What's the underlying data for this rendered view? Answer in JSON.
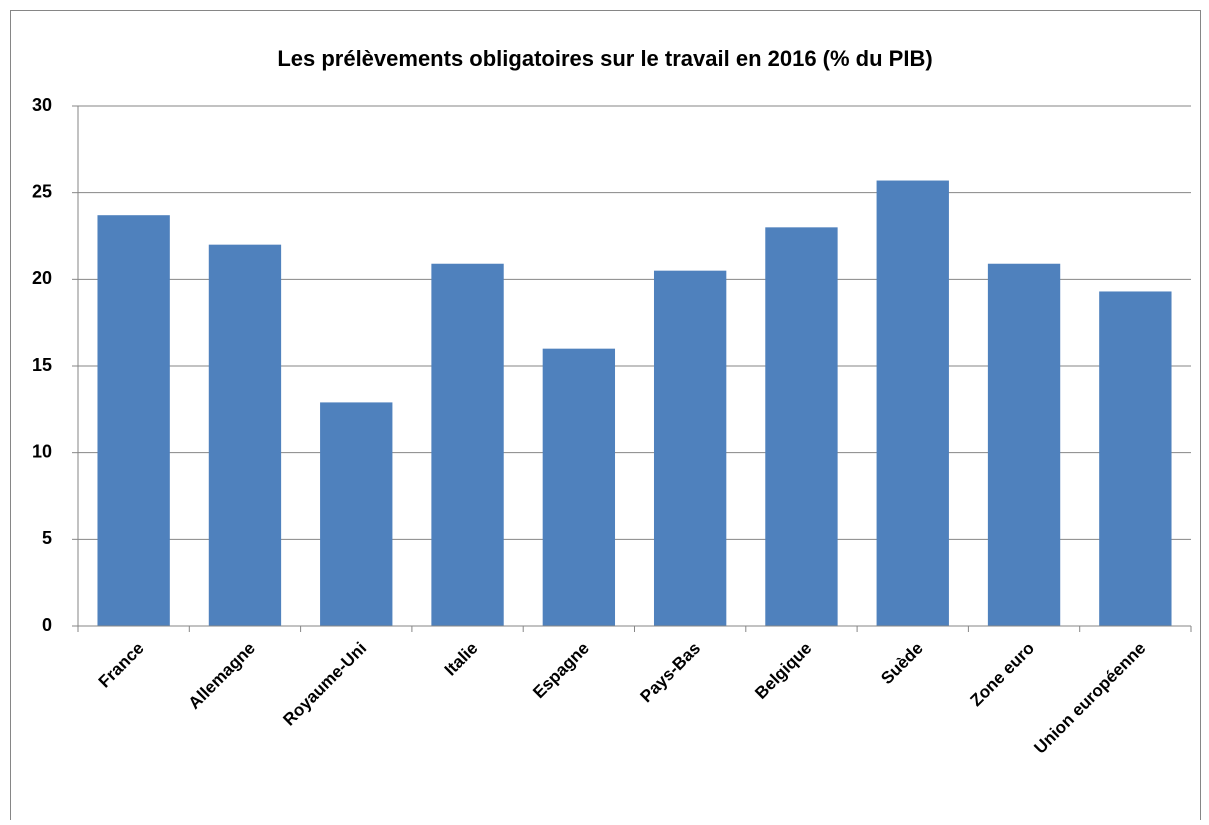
{
  "chart_data": {
    "type": "bar",
    "title": "Les prélèvements obligatoires sur le travail en 2016 (% du PIB)",
    "categories": [
      "France",
      "Allemagne",
      "Royaume-Uni",
      "Italie",
      "Espagne",
      "Pays-Bas",
      "Belgique",
      "Suède",
      "Zone euro",
      "Union européenne"
    ],
    "values": [
      23.7,
      22.0,
      12.9,
      20.9,
      16.0,
      20.5,
      23.0,
      25.7,
      20.9,
      19.3
    ],
    "color": "#4f81bd",
    "ylim": [
      0,
      30
    ],
    "yticks": [
      0,
      5,
      10,
      15,
      20,
      25,
      30
    ],
    "grid": true
  }
}
